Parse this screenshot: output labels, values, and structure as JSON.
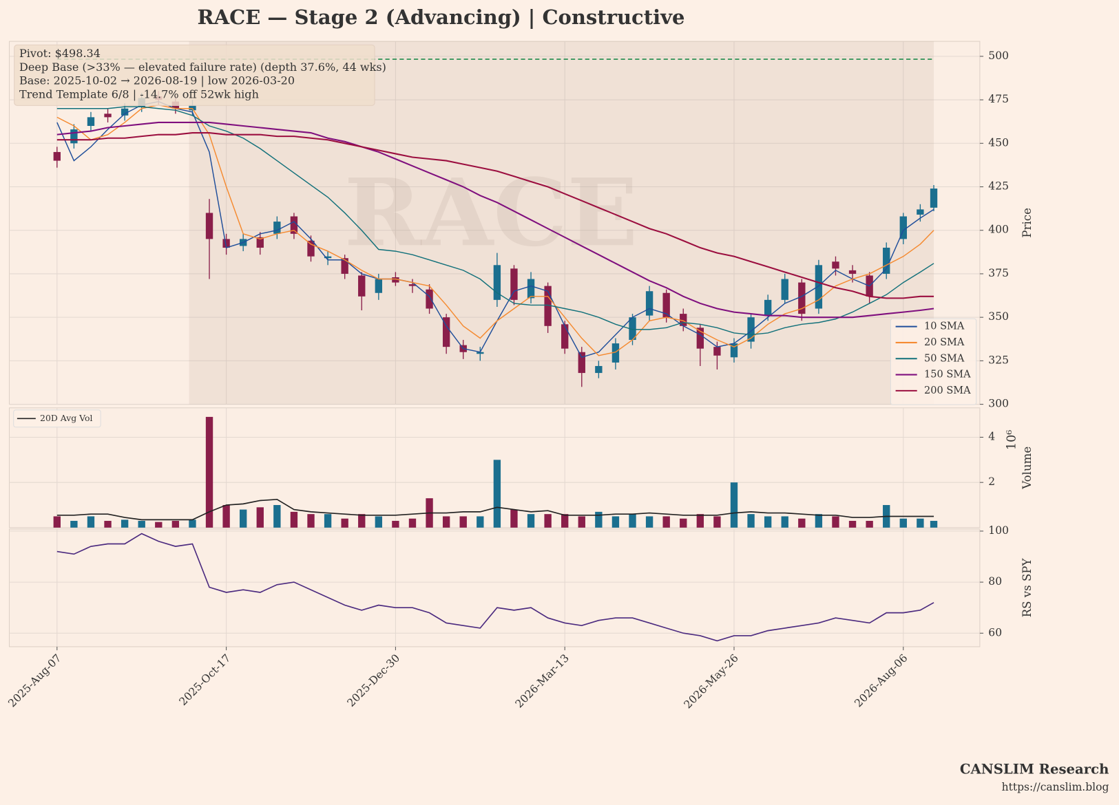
{
  "footer": {
    "brand": "CANSLIM Research",
    "url": "https://canslim.blog"
  },
  "chart_data": [
    {
      "type": "candlestick",
      "title": "RACE  —  Stage 2 (Advancing)  |  Constructive",
      "watermark": "RACE",
      "annotation_lines": [
        "Pivot: $498.34",
        "Deep Base (>33% — elevated failure rate)  (depth 37.6%, 44 wks)",
        "Base: 2025-10-02 → 2026-08-19  |  low 2026-03-20",
        "Trend Template 6/8  |  -14.7% off 52wk high"
      ],
      "ylabel": "Price",
      "pivot": 498.34,
      "pivot_color": "#1e8a4a",
      "base_span": [
        39,
        259
      ],
      "up_color": "#1b6f8f",
      "down_color": "#8a1e4a",
      "legend": "lower right",
      "grid": true,
      "xlim": [
        -14.1,
        272.6
      ],
      "ylim": [
        300,
        508.6
      ],
      "yticks": [
        300,
        325,
        350,
        375,
        400,
        425,
        450,
        475,
        500
      ],
      "x": [
        0,
        5,
        10,
        15,
        20,
        25,
        30,
        35,
        40,
        45,
        50,
        55,
        60,
        65,
        70,
        75,
        80,
        85,
        90,
        95,
        100,
        105,
        110,
        115,
        120,
        125,
        130,
        135,
        140,
        145,
        150,
        155,
        160,
        165,
        170,
        175,
        180,
        185,
        190,
        195,
        200,
        205,
        210,
        215,
        220,
        225,
        230,
        235,
        240,
        245,
        250,
        255,
        259
      ],
      "open": [
        445,
        450,
        460,
        467,
        466,
        471,
        477,
        474,
        469,
        410,
        395,
        391,
        396,
        398,
        408,
        394,
        384,
        384,
        374,
        364,
        373,
        369,
        366,
        350,
        334,
        329,
        360,
        378,
        361,
        368,
        346,
        330,
        318,
        324,
        337,
        351,
        364,
        352,
        344,
        333,
        327,
        336,
        351,
        360,
        370,
        355,
        382,
        377,
        374,
        375,
        395,
        409,
        413
      ],
      "high": [
        448,
        461,
        468,
        470,
        473,
        479,
        480,
        477,
        475,
        418,
        398,
        398,
        399,
        408,
        410,
        397,
        388,
        386,
        376,
        375,
        376,
        372,
        369,
        352,
        337,
        333,
        387,
        380,
        376,
        370,
        348,
        333,
        325,
        338,
        352,
        368,
        366,
        355,
        346,
        336,
        338,
        352,
        363,
        375,
        372,
        383,
        385,
        380,
        376,
        393,
        410,
        415,
        426
      ],
      "low": [
        436,
        447,
        457,
        462,
        463,
        468,
        472,
        467,
        466,
        372,
        386,
        388,
        386,
        395,
        395,
        382,
        380,
        372,
        354,
        360,
        368,
        364,
        352,
        329,
        326,
        325,
        356,
        357,
        358,
        341,
        329,
        310,
        315,
        320,
        334,
        348,
        347,
        342,
        322,
        320,
        324,
        332,
        348,
        358,
        348,
        352,
        374,
        370,
        358,
        372,
        392,
        405,
        411
      ],
      "close": [
        440,
        458,
        465,
        465,
        470,
        476,
        475,
        470,
        472,
        395,
        390,
        395,
        390,
        405,
        398,
        385,
        385,
        375,
        362,
        372,
        370,
        368,
        355,
        333,
        330,
        330,
        380,
        360,
        372,
        345,
        332,
        318,
        322,
        335,
        350,
        365,
        350,
        345,
        332,
        328,
        335,
        350,
        360,
        372,
        352,
        380,
        378,
        375,
        362,
        390,
        408,
        412,
        424
      ],
      "series": [
        {
          "name": "10 SMA",
          "color": "#1f4e9a",
          "values": [
            462,
            440,
            448,
            458,
            467,
            472,
            474,
            470,
            468,
            445,
            390,
            393,
            398,
            400,
            405,
            395,
            383,
            383,
            375,
            372,
            372,
            370,
            362,
            345,
            332,
            330,
            348,
            365,
            368,
            365,
            345,
            327,
            330,
            340,
            350,
            355,
            352,
            345,
            340,
            333,
            335,
            342,
            350,
            358,
            362,
            368,
            377,
            372,
            368,
            378,
            400,
            407,
            412
          ]
        },
        {
          "name": "20 SMA",
          "color": "#f58a30",
          "values": [
            465,
            460,
            452,
            455,
            462,
            470,
            472,
            470,
            470,
            455,
            425,
            398,
            395,
            398,
            400,
            392,
            388,
            383,
            377,
            372,
            372,
            370,
            368,
            357,
            345,
            338,
            348,
            355,
            362,
            362,
            350,
            338,
            328,
            330,
            337,
            348,
            350,
            348,
            342,
            337,
            333,
            338,
            346,
            352,
            355,
            360,
            368,
            372,
            375,
            380,
            385,
            392,
            400
          ]
        },
        {
          "name": "50 SMA",
          "color": "#11707a",
          "values": [
            470,
            470,
            470,
            470,
            471,
            471,
            470,
            469,
            466,
            460,
            457,
            453,
            447,
            440,
            433,
            426,
            419,
            410,
            400,
            389,
            388,
            386,
            383,
            380,
            377,
            372,
            364,
            358,
            357,
            357,
            355,
            353,
            350,
            346,
            343,
            343,
            344,
            347,
            346,
            344,
            341,
            340,
            341,
            344,
            346,
            347,
            349,
            353,
            358,
            363,
            370,
            376,
            381
          ]
        },
        {
          "name": "150 SMA",
          "color": "#7f0f7e",
          "values": [
            455,
            456,
            457,
            459,
            460,
            461,
            462,
            462,
            462,
            462,
            461,
            460,
            459,
            458,
            457,
            456,
            453,
            451,
            448,
            445,
            441,
            437,
            433,
            429,
            425,
            420,
            416,
            411,
            406,
            401,
            396,
            391,
            386,
            381,
            376,
            371,
            367,
            362,
            358,
            355,
            353,
            352,
            351,
            351,
            350,
            350,
            350,
            350,
            351,
            352,
            353,
            354,
            355
          ]
        },
        {
          "name": "200 SMA",
          "color": "#9b0e3f",
          "values": [
            452,
            452,
            452,
            453,
            453,
            454,
            455,
            455,
            456,
            456,
            455,
            455,
            455,
            454,
            454,
            453,
            452,
            450,
            448,
            446,
            444,
            442,
            441,
            440,
            438,
            436,
            434,
            431,
            428,
            425,
            421,
            417,
            413,
            409,
            405,
            401,
            398,
            394,
            390,
            387,
            385,
            382,
            379,
            376,
            373,
            370,
            367,
            365,
            362,
            361,
            361,
            362,
            362
          ]
        }
      ]
    },
    {
      "type": "bar",
      "ylabel": "Volume",
      "scale_label": "10⁶",
      "legend": "upper left",
      "grid": true,
      "ylim": [
        0,
        5.3
      ],
      "yticks": [
        2,
        4
      ],
      "values": [
        0.5,
        0.3,
        0.5,
        0.3,
        0.35,
        0.3,
        0.25,
        0.3,
        0.35,
        4.9,
        1.0,
        0.8,
        0.9,
        1.0,
        0.7,
        0.6,
        0.6,
        0.4,
        0.6,
        0.5,
        0.3,
        0.4,
        1.3,
        0.5,
        0.5,
        0.5,
        3.0,
        0.8,
        0.6,
        0.6,
        0.6,
        0.5,
        0.7,
        0.5,
        0.6,
        0.5,
        0.5,
        0.4,
        0.6,
        0.5,
        2.0,
        0.6,
        0.5,
        0.5,
        0.4,
        0.6,
        0.5,
        0.3,
        0.3,
        1.0,
        0.4,
        0.4,
        0.3
      ],
      "series": [
        {
          "name": "20D Avg Vol",
          "color": "#222222",
          "values": [
            0.55,
            0.55,
            0.6,
            0.6,
            0.45,
            0.35,
            0.35,
            0.35,
            0.35,
            0.7,
            1.0,
            1.05,
            1.2,
            1.25,
            0.8,
            0.7,
            0.65,
            0.6,
            0.55,
            0.55,
            0.55,
            0.6,
            0.65,
            0.65,
            0.7,
            0.7,
            0.9,
            0.8,
            0.7,
            0.75,
            0.55,
            0.55,
            0.55,
            0.6,
            0.6,
            0.65,
            0.6,
            0.55,
            0.55,
            0.55,
            0.65,
            0.7,
            0.65,
            0.65,
            0.6,
            0.55,
            0.55,
            0.45,
            0.45,
            0.5,
            0.5,
            0.5,
            0.5
          ]
        }
      ]
    },
    {
      "type": "line",
      "ylabel": "RS vs SPY",
      "grid": true,
      "color": "#4b2a7f",
      "ylim": [
        54.7,
        100.8
      ],
      "yticks": [
        60,
        80,
        100
      ],
      "xticks": [
        {
          "value": 0,
          "label": "2025-Aug-07"
        },
        {
          "value": 50,
          "label": "2025-Oct-17"
        },
        {
          "value": 100,
          "label": "2025-Dec-30"
        },
        {
          "value": 150,
          "label": "2026-Mar-13"
        },
        {
          "value": 200,
          "label": "2026-May-26"
        },
        {
          "value": 250,
          "label": "2026-Aug-06"
        }
      ],
      "values": [
        92,
        91,
        94,
        95,
        95,
        99,
        96,
        94,
        95,
        78,
        76,
        77,
        76,
        79,
        80,
        77,
        74,
        71,
        69,
        71,
        70,
        70,
        68,
        64,
        63,
        62,
        70,
        69,
        70,
        66,
        64,
        63,
        65,
        66,
        66,
        64,
        62,
        60,
        59,
        57,
        59,
        59,
        61,
        62,
        63,
        64,
        66,
        65,
        64,
        68,
        68,
        69,
        72
      ]
    }
  ]
}
